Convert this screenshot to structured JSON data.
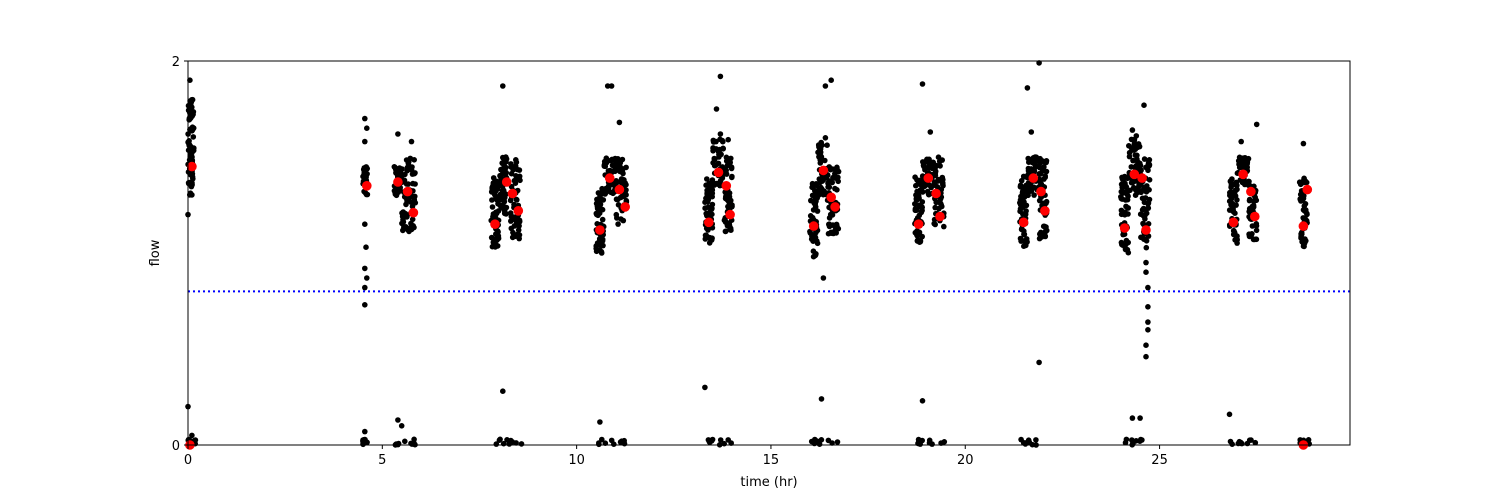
{
  "chart_data": {
    "type": "scatter",
    "title": "",
    "xlabel": "time (hr)",
    "ylabel": "flow",
    "xlim": [
      0,
      29.9
    ],
    "ylim": [
      0,
      2
    ],
    "xticks": [
      0,
      5,
      10,
      15,
      20,
      25
    ],
    "xtick_labels": [
      "0",
      "5",
      "10",
      "15",
      "20",
      "25"
    ],
    "yticks": [
      0,
      2
    ],
    "ytick_labels": [
      "0",
      "2"
    ],
    "grid": false,
    "legend": "none",
    "threshold_line": {
      "y": 0.8,
      "style": "dotted",
      "color": "#0000ff"
    },
    "series": [
      {
        "marker_color": "#000000",
        "clusters": [
          {
            "x": [
              0.0,
              0.15
            ],
            "y_range": [
              1.3,
              1.8
            ],
            "n": 90
          },
          {
            "x": [
              4.5,
              4.62
            ],
            "y_range": [
              1.3,
              1.45
            ],
            "n": 30
          },
          {
            "x": [
              5.3,
              5.5
            ],
            "y_range": [
              1.3,
              1.45
            ],
            "n": 40
          },
          {
            "x": [
              5.5,
              5.85
            ],
            "y_range": [
              1.1,
              1.5
            ],
            "n": 60
          },
          {
            "x": [
              7.8,
              8.0
            ],
            "y_range": [
              1.03,
              1.4
            ],
            "n": 55
          },
          {
            "x": [
              8.0,
              8.2
            ],
            "y_range": [
              1.2,
              1.5
            ],
            "n": 45
          },
          {
            "x": [
              8.3,
              8.55
            ],
            "y_range": [
              1.07,
              1.5
            ],
            "n": 55
          },
          {
            "x": [
              10.5,
              10.7
            ],
            "y_range": [
              1.0,
              1.35
            ],
            "n": 55
          },
          {
            "x": [
              10.7,
              11.0
            ],
            "y_range": [
              1.3,
              1.5
            ],
            "n": 45
          },
          {
            "x": [
              11.0,
              11.3
            ],
            "y_range": [
              1.15,
              1.5
            ],
            "n": 55
          },
          {
            "x": [
              13.3,
              13.5
            ],
            "y_range": [
              1.05,
              1.4
            ],
            "n": 55
          },
          {
            "x": [
              13.5,
              13.8
            ],
            "y_range": [
              1.35,
              1.6
            ],
            "n": 45
          },
          {
            "x": [
              13.8,
              14.0
            ],
            "y_range": [
              1.1,
              1.5
            ],
            "n": 50
          },
          {
            "x": [
              16.0,
              16.2
            ],
            "y_range": [
              0.98,
              1.4
            ],
            "n": 55
          },
          {
            "x": [
              16.2,
              16.45
            ],
            "y_range": [
              1.3,
              1.6
            ],
            "n": 50
          },
          {
            "x": [
              16.45,
              16.75
            ],
            "y_range": [
              1.1,
              1.45
            ],
            "n": 55
          },
          {
            "x": [
              18.7,
              18.9
            ],
            "y_range": [
              1.05,
              1.4
            ],
            "n": 55
          },
          {
            "x": [
              18.9,
              19.2
            ],
            "y_range": [
              1.3,
              1.5
            ],
            "n": 45
          },
          {
            "x": [
              19.2,
              19.45
            ],
            "y_range": [
              1.1,
              1.5
            ],
            "n": 50
          },
          {
            "x": [
              21.4,
              21.6
            ],
            "y_range": [
              1.03,
              1.4
            ],
            "n": 55
          },
          {
            "x": [
              21.6,
              21.9
            ],
            "y_range": [
              1.3,
              1.5
            ],
            "n": 45
          },
          {
            "x": [
              21.9,
              22.1
            ],
            "y_range": [
              1.07,
              1.5
            ],
            "n": 55
          },
          {
            "x": [
              24.0,
              24.2
            ],
            "y_range": [
              1.0,
              1.4
            ],
            "n": 55
          },
          {
            "x": [
              24.2,
              24.5
            ],
            "y_range": [
              1.3,
              1.6
            ],
            "n": 55
          },
          {
            "x": [
              24.5,
              24.75
            ],
            "y_range": [
              1.02,
              1.5
            ],
            "n": 55
          },
          {
            "x": [
              26.8,
              27.0
            ],
            "y_range": [
              1.05,
              1.4
            ],
            "n": 50
          },
          {
            "x": [
              27.0,
              27.3
            ],
            "y_range": [
              1.35,
              1.5
            ],
            "n": 45
          },
          {
            "x": [
              27.3,
              27.5
            ],
            "y_range": [
              1.07,
              1.35
            ],
            "n": 50
          },
          {
            "x": [
              28.6,
              28.8
            ],
            "y_range": [
              1.03,
              1.4
            ],
            "n": 55
          }
        ],
        "points": [
          {
            "x": 0.05,
            "y": 1.9
          },
          {
            "x": 0.0,
            "y": 0.2
          },
          {
            "x": 0.1,
            "y": 0.05
          },
          {
            "x": 0.0,
            "y": 1.2
          },
          {
            "x": 4.55,
            "y": 1.7
          },
          {
            "x": 4.6,
            "y": 1.65
          },
          {
            "x": 4.55,
            "y": 1.58
          },
          {
            "x": 4.55,
            "y": 1.15
          },
          {
            "x": 4.58,
            "y": 1.03
          },
          {
            "x": 4.55,
            "y": 0.92
          },
          {
            "x": 4.6,
            "y": 0.87
          },
          {
            "x": 4.55,
            "y": 0.82
          },
          {
            "x": 4.55,
            "y": 0.73
          },
          {
            "x": 4.55,
            "y": 0.07
          },
          {
            "x": 5.4,
            "y": 1.62
          },
          {
            "x": 5.75,
            "y": 1.58
          },
          {
            "x": 8.1,
            "y": 1.87
          },
          {
            "x": 10.8,
            "y": 1.87
          },
          {
            "x": 10.9,
            "y": 1.87
          },
          {
            "x": 11.1,
            "y": 1.68
          },
          {
            "x": 13.7,
            "y": 1.92
          },
          {
            "x": 13.6,
            "y": 1.75
          },
          {
            "x": 13.7,
            "y": 1.62
          },
          {
            "x": 13.9,
            "y": 1.59
          },
          {
            "x": 16.4,
            "y": 1.87
          },
          {
            "x": 16.55,
            "y": 1.9
          },
          {
            "x": 16.4,
            "y": 1.6
          },
          {
            "x": 16.35,
            "y": 0.87
          },
          {
            "x": 18.9,
            "y": 1.88
          },
          {
            "x": 19.1,
            "y": 1.63
          },
          {
            "x": 21.6,
            "y": 1.86
          },
          {
            "x": 21.9,
            "y": 1.99
          },
          {
            "x": 21.7,
            "y": 1.63
          },
          {
            "x": 21.9,
            "y": 0.43
          },
          {
            "x": 24.3,
            "y": 1.64
          },
          {
            "x": 24.4,
            "y": 1.61
          },
          {
            "x": 24.6,
            "y": 1.77
          },
          {
            "x": 24.65,
            "y": 0.95
          },
          {
            "x": 24.65,
            "y": 0.9
          },
          {
            "x": 24.7,
            "y": 0.82
          },
          {
            "x": 24.7,
            "y": 0.72
          },
          {
            "x": 24.7,
            "y": 0.64
          },
          {
            "x": 24.7,
            "y": 0.6
          },
          {
            "x": 24.65,
            "y": 0.52
          },
          {
            "x": 24.65,
            "y": 0.46
          },
          {
            "x": 27.1,
            "y": 1.58
          },
          {
            "x": 27.5,
            "y": 1.67
          },
          {
            "x": 28.7,
            "y": 1.57
          },
          {
            "x": 8.1,
            "y": 0.28
          },
          {
            "x": 13.3,
            "y": 0.3
          },
          {
            "x": 16.3,
            "y": 0.24
          },
          {
            "x": 18.9,
            "y": 0.23
          },
          {
            "x": 10.6,
            "y": 0.12
          },
          {
            "x": 26.8,
            "y": 0.16
          },
          {
            "x": 24.3,
            "y": 0.14
          },
          {
            "x": 24.5,
            "y": 0.14
          },
          {
            "x": 5.4,
            "y": 0.13
          },
          {
            "x": 5.5,
            "y": 0.1
          }
        ],
        "low_clusters": [
          [
            0.0,
            0.2
          ],
          [
            4.5,
            4.62
          ],
          [
            5.3,
            5.9
          ],
          [
            7.8,
            8.6
          ],
          [
            10.5,
            11.3
          ],
          [
            13.3,
            14.0
          ],
          [
            16.0,
            16.8
          ],
          [
            18.7,
            19.5
          ],
          [
            21.4,
            22.1
          ],
          [
            24.0,
            24.75
          ],
          [
            26.8,
            27.5
          ],
          [
            28.6,
            28.85
          ]
        ]
      },
      {
        "marker_color": "#ff0000",
        "x": [
          0.1,
          4.6,
          5.4,
          5.65,
          5.8,
          7.9,
          8.2,
          8.35,
          8.5,
          10.6,
          10.85,
          11.1,
          11.25,
          13.4,
          13.65,
          13.85,
          13.95,
          16.1,
          16.35,
          16.55,
          16.65,
          18.8,
          19.05,
          19.25,
          19.35,
          21.5,
          21.75,
          21.95,
          22.05,
          24.1,
          24.35,
          24.55,
          24.65,
          26.9,
          27.15,
          27.35,
          27.45,
          28.7,
          28.8,
          0.05,
          28.7
        ],
        "y": [
          1.45,
          1.35,
          1.37,
          1.32,
          1.21,
          1.15,
          1.37,
          1.31,
          1.22,
          1.12,
          1.39,
          1.33,
          1.24,
          1.16,
          1.42,
          1.35,
          1.2,
          1.14,
          1.43,
          1.29,
          1.24,
          1.15,
          1.39,
          1.31,
          1.19,
          1.16,
          1.39,
          1.32,
          1.22,
          1.13,
          1.41,
          1.39,
          1.12,
          1.16,
          1.41,
          1.32,
          1.19,
          1.14,
          1.33,
          0.0,
          0.0
        ]
      }
    ]
  }
}
